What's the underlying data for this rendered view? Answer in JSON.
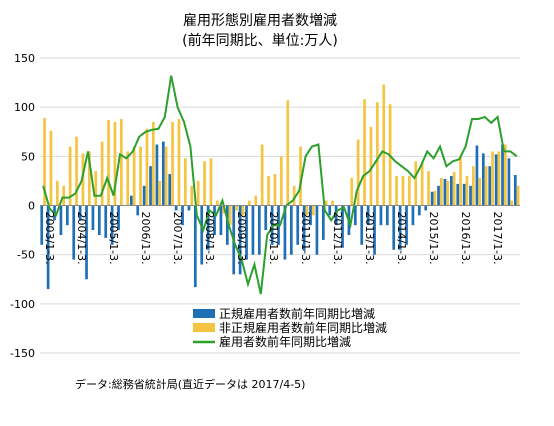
{
  "chart_data": {
    "type": "bar+line",
    "title_line1": "雇用形態別雇用者数増減",
    "title_line2": "(前年同期比、単位:万人)",
    "note": "データ:総務省統計局(直近データは 2017/4-5)",
    "ylim": [
      -150,
      150
    ],
    "yticks": [
      -150,
      -100,
      -50,
      0,
      50,
      100,
      150
    ],
    "x_tick_labels": [
      "2003/1-3.",
      "2004/1-3.",
      "2005/1-3.",
      "2006/1-3.",
      "2007/1-3.",
      "2008/1-3.",
      "2009/1-3.",
      "2010/1-3.",
      "2011/1-3.",
      "2012/1-3.",
      "2013/1-3.",
      "2014/1-3.",
      "2015/1-3.",
      "2016/1-3.",
      "2017/1-3."
    ],
    "grid": true,
    "legend_position": "bottom-right",
    "colors": {
      "regular": "#1f6fb5",
      "nonregular": "#f5c542",
      "total": "#2ca02c"
    },
    "series": [
      {
        "name": "正規雇用者数前年同期比増減",
        "type": "bar",
        "values": [
          -40,
          -85,
          -15,
          -30,
          -20,
          -55,
          -15,
          -75,
          -25,
          -30,
          -33,
          -40,
          -25,
          0,
          10,
          -10,
          20,
          40,
          62,
          65,
          32,
          -5,
          -20,
          -5,
          -83,
          -60,
          -45,
          -30,
          -30,
          -40,
          -70,
          -70,
          -55,
          -50,
          -50,
          -25,
          -40,
          -40,
          -55,
          -50,
          -40,
          -46,
          -20,
          -50,
          -35,
          -10,
          -20,
          -43,
          -30,
          -20,
          -40,
          -20,
          -50,
          -20,
          -20,
          -45,
          -45,
          -40,
          -20,
          -10,
          -5,
          14,
          20,
          27,
          30,
          22,
          22,
          20,
          61,
          53,
          40,
          52,
          62,
          48,
          31
        ]
      },
      {
        "name": "非正規雇用者数前年同期比増減",
        "type": "bar",
        "values": [
          89,
          76,
          25,
          20,
          60,
          70,
          53,
          55,
          35,
          65,
          87,
          85,
          88,
          55,
          60,
          60,
          78,
          85,
          25,
          60,
          85,
          88,
          48,
          20,
          25,
          45,
          48,
          5,
          -8,
          -20,
          -5,
          -10,
          5,
          10,
          62,
          30,
          32,
          50,
          107,
          20,
          60,
          -10,
          -10,
          0,
          5,
          5,
          0,
          0,
          28,
          67,
          108,
          80,
          105,
          123,
          103,
          30,
          30,
          30,
          45,
          44,
          35,
          15,
          28,
          25,
          34,
          50,
          30,
          40,
          28,
          40,
          55,
          55,
          62,
          5,
          20
        ]
      },
      {
        "name": "雇用者数前年同期比増減",
        "type": "line",
        "values": [
          20,
          -3,
          -10,
          8,
          8,
          12,
          25,
          55,
          10,
          10,
          28,
          10,
          52,
          48,
          55,
          70,
          75,
          77,
          78,
          90,
          132,
          100,
          85,
          60,
          -10,
          -25,
          -5,
          -10,
          5,
          -20,
          -40,
          -55,
          -80,
          -60,
          -90,
          -30,
          -20,
          -20,
          0,
          5,
          15,
          50,
          60,
          62,
          -5,
          -15,
          -5,
          -2,
          -20,
          15,
          30,
          35,
          45,
          55,
          52,
          45,
          40,
          35,
          28,
          40,
          55,
          48,
          60,
          40,
          45,
          47,
          60,
          88,
          88,
          90,
          84,
          90,
          55,
          55,
          50
        ]
      }
    ]
  },
  "legend": [
    {
      "label": "正規雇用者数前年同期比増減",
      "color": "#1f6fb5",
      "kind": "bar"
    },
    {
      "label": "非正規雇用者数前年同期比増減",
      "color": "#f5c542",
      "kind": "bar"
    },
    {
      "label": "雇用者数前年同期比増減",
      "color": "#2ca02c",
      "kind": "line"
    }
  ]
}
